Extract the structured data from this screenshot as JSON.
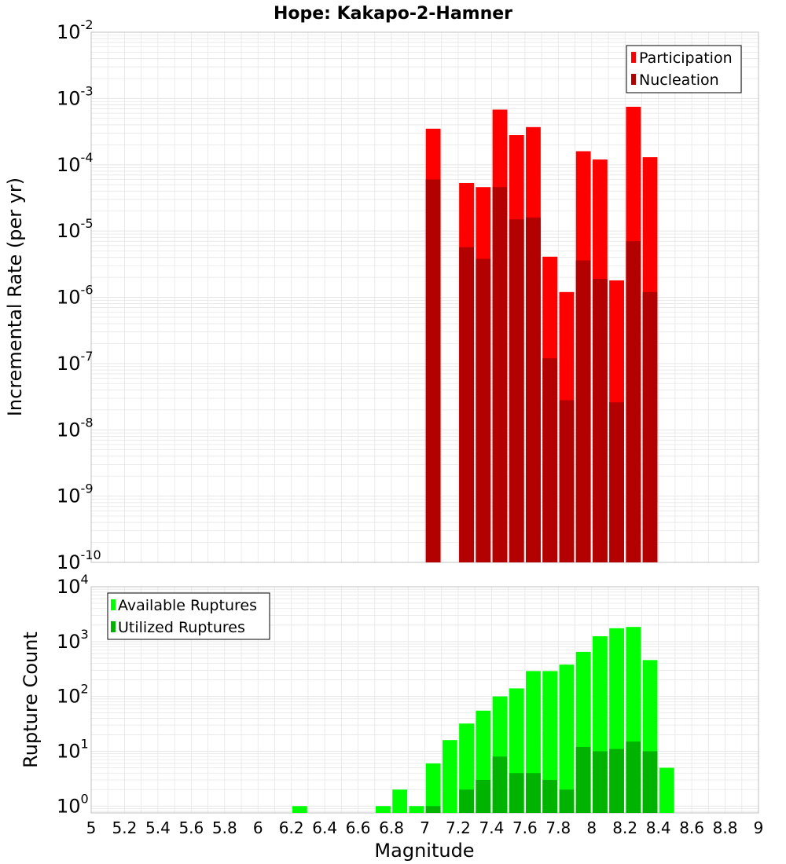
{
  "colors": {
    "participation": "#ff0000",
    "nucleation": "#b30000",
    "available": "#00ff00",
    "utilized": "#00b300",
    "grid": "#e6e6e6",
    "frame": "#c0c0c0"
  },
  "chart_data": [
    {
      "type": "bar",
      "title": "Hope: Kakapo-2-Hamner",
      "xlabel": "",
      "ylabel": "Incremental Rate (per yr)",
      "yscale": "log",
      "ylim": [
        1e-10,
        0.01
      ],
      "xlim": [
        5,
        9
      ],
      "y_ticks": [
        {
          "base": "10",
          "exp": "-2",
          "value": 0.01
        },
        {
          "base": "10",
          "exp": "-3",
          "value": 0.001
        },
        {
          "base": "10",
          "exp": "-4",
          "value": 0.0001
        },
        {
          "base": "10",
          "exp": "-5",
          "value": 1e-05
        },
        {
          "base": "10",
          "exp": "-6",
          "value": 1e-06
        },
        {
          "base": "10",
          "exp": "-7",
          "value": 1e-07
        },
        {
          "base": "10",
          "exp": "-8",
          "value": 1e-08
        },
        {
          "base": "10",
          "exp": "-9",
          "value": 1e-09
        },
        {
          "base": "10",
          "exp": "-10",
          "value": 1e-10
        }
      ],
      "legend": {
        "placement": "top-right",
        "entries": [
          "Participation",
          "Nucleation"
        ]
      },
      "x": [
        7.05,
        7.15,
        7.25,
        7.35,
        7.45,
        7.55,
        7.65,
        7.75,
        7.85,
        7.95,
        8.05,
        8.15,
        8.25,
        8.35
      ],
      "series": [
        {
          "name": "Participation",
          "values": [
            0.00035,
            null,
            5.3e-05,
            4.6e-05,
            0.00068,
            0.00028,
            0.00037,
            4.1e-06,
            1.2e-06,
            0.00016,
            0.00012,
            1.8e-06,
            0.00075,
            0.00013
          ]
        },
        {
          "name": "Nucleation",
          "values": [
            6e-05,
            null,
            5.7e-06,
            3.8e-06,
            4.6e-05,
            1.5e-05,
            1.6e-05,
            1.2e-07,
            2.8e-08,
            3.6e-06,
            1.9e-06,
            2.6e-08,
            7e-06,
            1.2e-06
          ]
        }
      ]
    },
    {
      "type": "bar",
      "title": "",
      "xlabel": "Magnitude",
      "ylabel": "Rupture Count",
      "yscale": "log",
      "ylim": [
        0.75,
        10000
      ],
      "xlim": [
        5,
        9
      ],
      "x_tick_labels": [
        "5",
        "5.2",
        "5.4",
        "5.6",
        "5.8",
        "6",
        "6.2",
        "6.4",
        "6.6",
        "6.8",
        "7",
        "7.2",
        "7.4",
        "7.6",
        "7.8",
        "8",
        "8.2",
        "8.4",
        "8.6",
        "8.8",
        "9"
      ],
      "y_ticks": [
        {
          "base": "10",
          "exp": "4",
          "value": 10000
        },
        {
          "base": "10",
          "exp": "3",
          "value": 1000
        },
        {
          "base": "10",
          "exp": "2",
          "value": 100
        },
        {
          "base": "10",
          "exp": "1",
          "value": 10
        },
        {
          "base": "10",
          "exp": "0",
          "value": 1
        }
      ],
      "legend": {
        "placement": "top-left",
        "entries": [
          "Available Ruptures",
          "Utilized Ruptures"
        ]
      },
      "x": [
        6.25,
        6.75,
        6.85,
        6.95,
        7.05,
        7.15,
        7.25,
        7.35,
        7.45,
        7.55,
        7.65,
        7.75,
        7.85,
        7.95,
        8.05,
        8.15,
        8.25,
        8.35,
        8.45
      ],
      "series": [
        {
          "name": "Available Ruptures",
          "values": [
            1,
            1,
            2,
            1,
            6,
            16,
            32,
            55,
            100,
            140,
            290,
            290,
            380,
            650,
            1250,
            1750,
            1850,
            460,
            5
          ]
        },
        {
          "name": "Utilized Ruptures",
          "values": [
            null,
            null,
            null,
            null,
            1,
            null,
            2,
            3,
            8,
            4,
            4,
            3,
            2,
            12,
            10,
            11,
            15,
            10,
            null
          ]
        }
      ]
    }
  ]
}
